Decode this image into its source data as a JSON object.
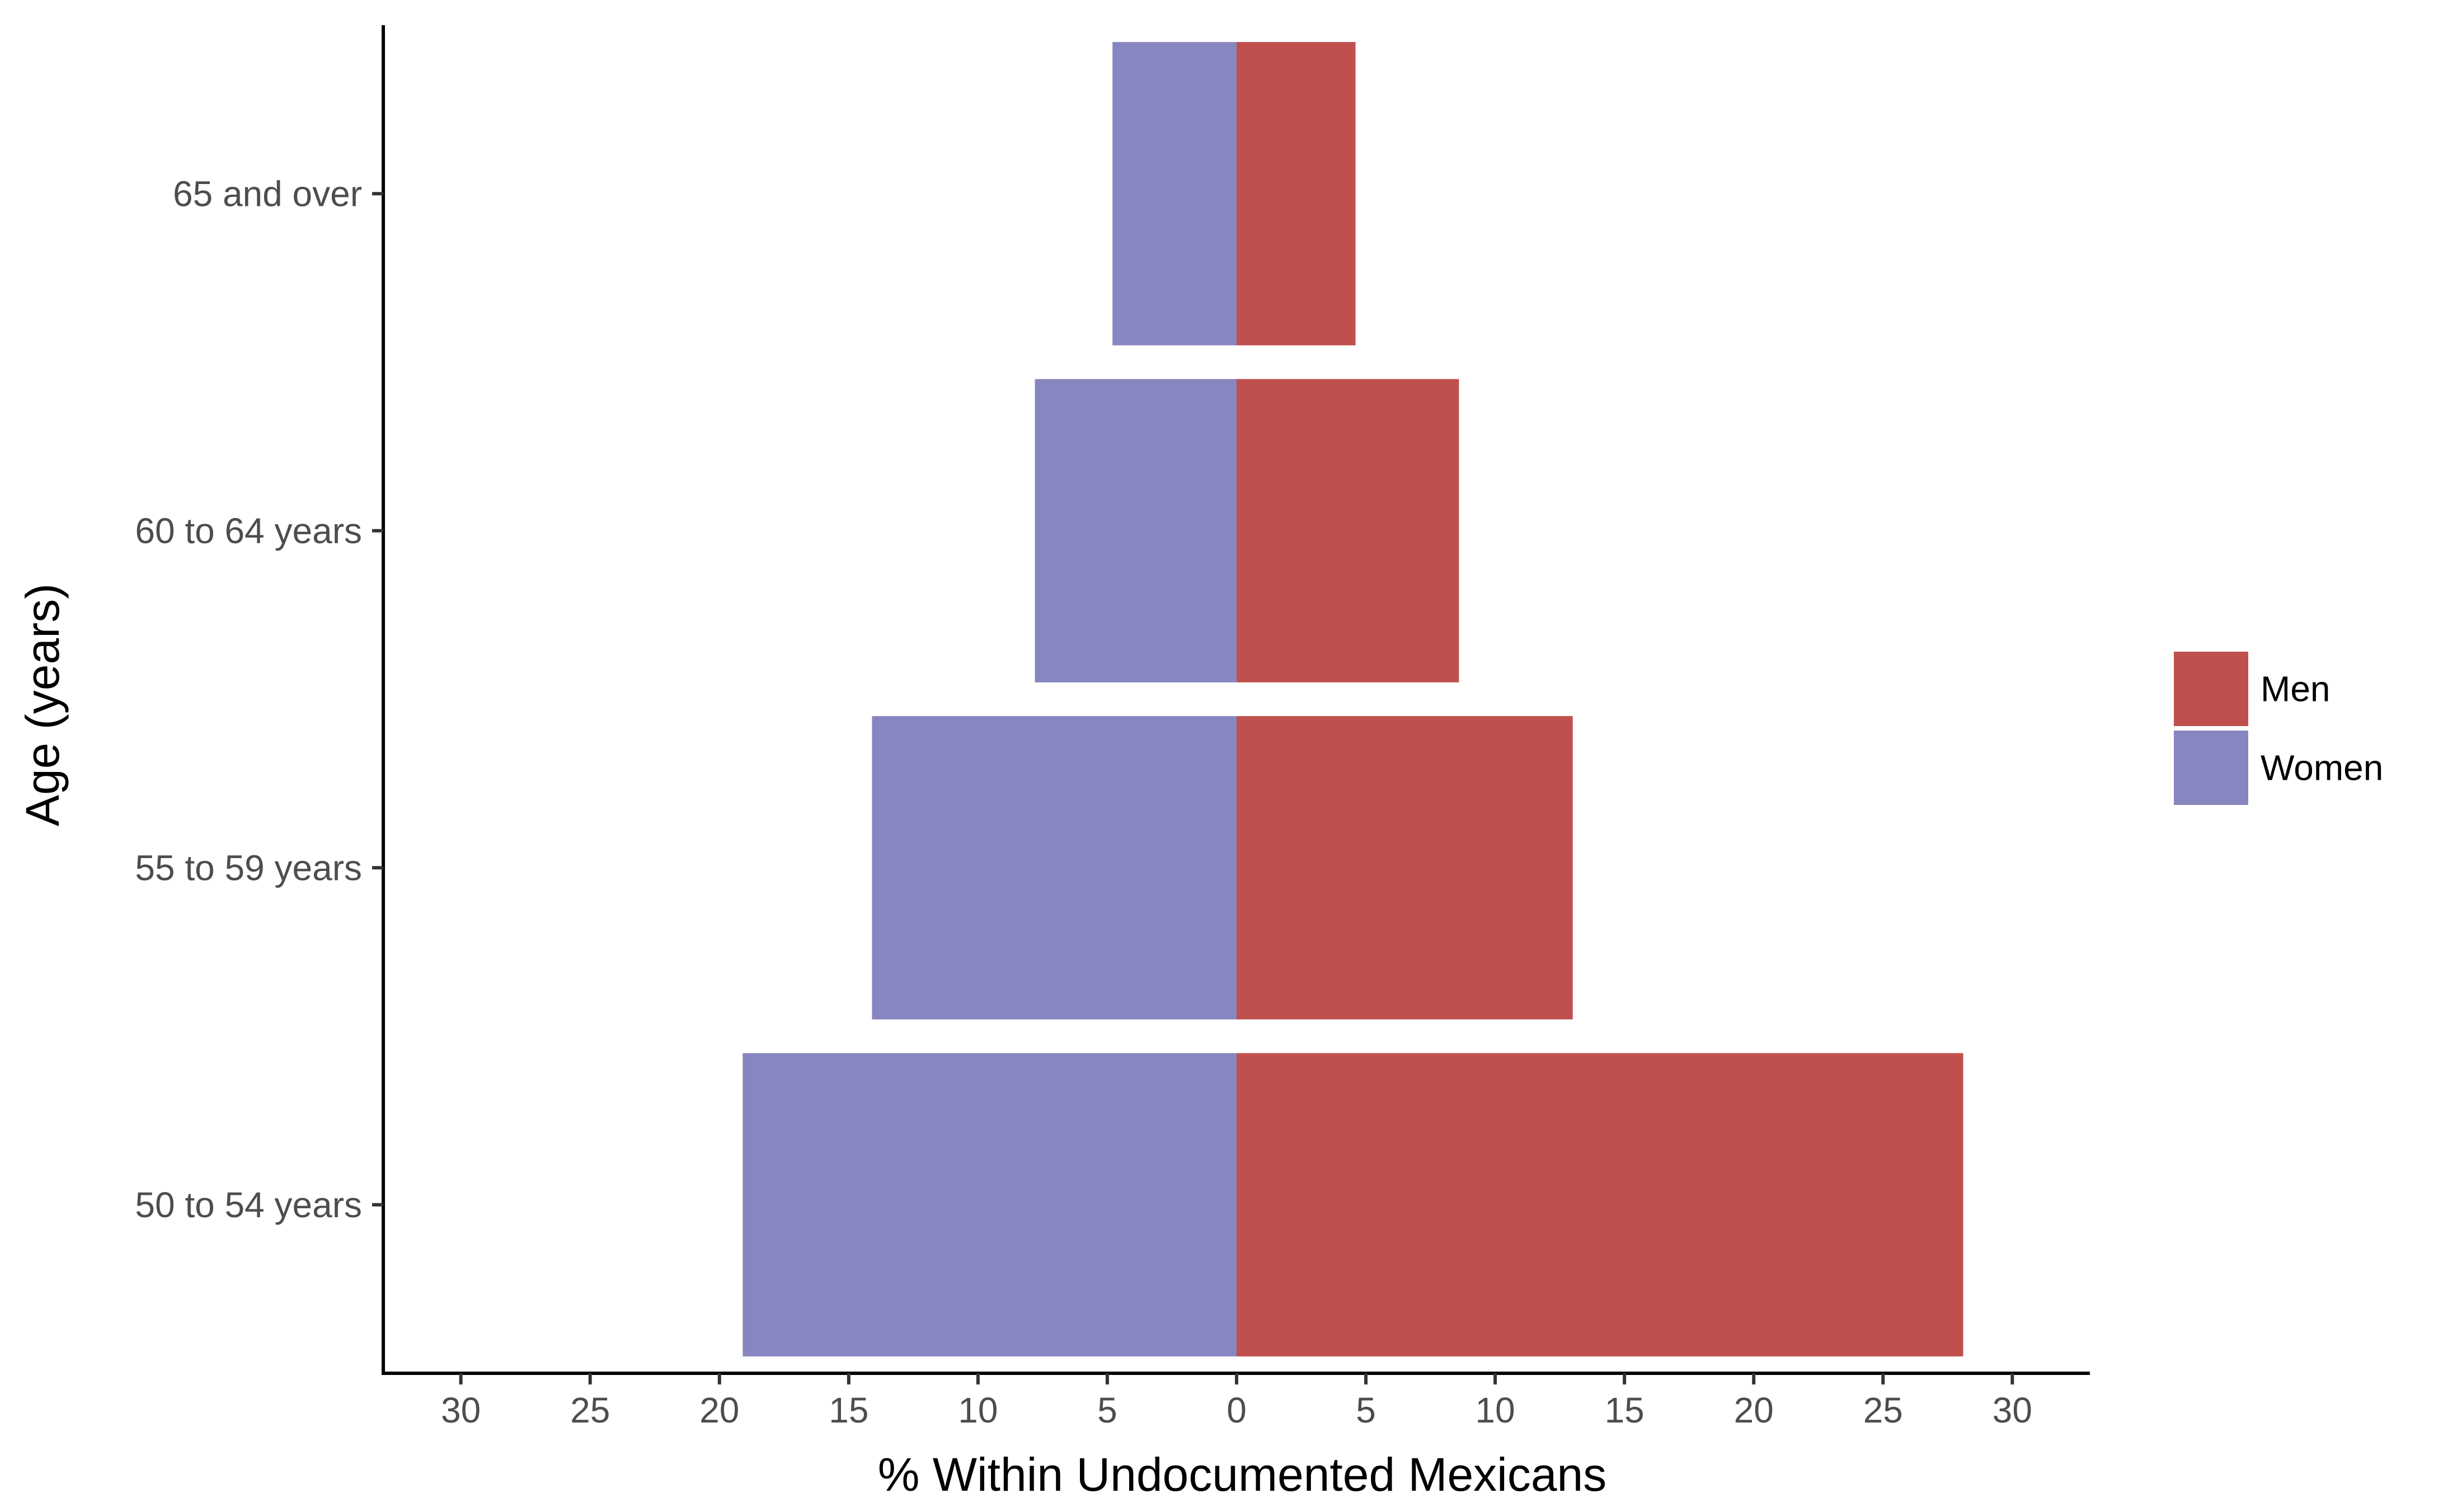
{
  "chart_data": {
    "type": "bar",
    "orientation": "horizontal",
    "layout": "population-pyramid",
    "title": "",
    "xlabel": "% Within Undocumented Mexicans",
    "ylabel": "Age (years)",
    "categories": [
      "50 to 54 years",
      "55 to 59 years",
      "60 to 64 years",
      "65 and over"
    ],
    "series": [
      {
        "name": "Men",
        "color": "#c0504d",
        "side": "right",
        "values": [
          28.1,
          13.0,
          8.6,
          4.6
        ]
      },
      {
        "name": "Women",
        "color": "#8886c0",
        "side": "left",
        "values": [
          19.1,
          14.1,
          7.8,
          4.8
        ]
      }
    ],
    "xlim": [
      -33,
      33
    ],
    "x_ticks": [
      -30,
      -25,
      -20,
      -15,
      -10,
      -5,
      0,
      5,
      10,
      15,
      20,
      25,
      30
    ],
    "x_tick_labels": [
      "30",
      "25",
      "20",
      "15",
      "10",
      "5",
      "0",
      "5",
      "10",
      "15",
      "20",
      "25",
      "30"
    ],
    "grid": false,
    "legend_position": "right"
  }
}
